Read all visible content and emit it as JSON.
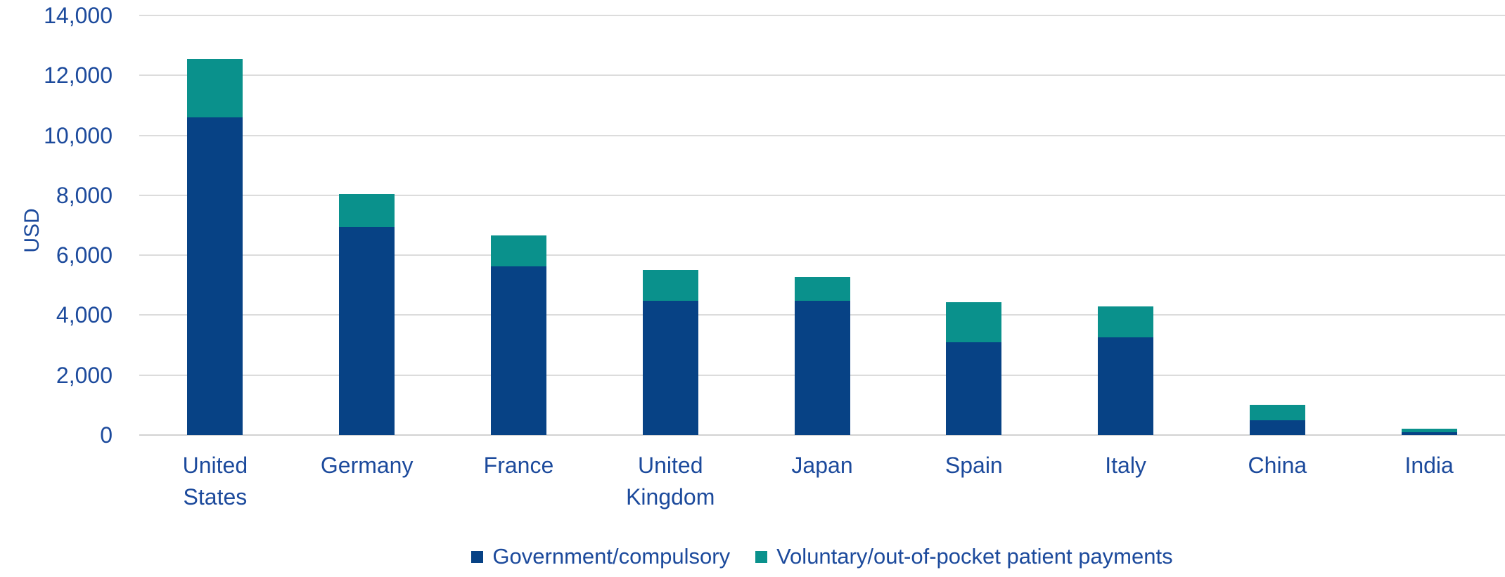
{
  "colors": {
    "government_series": "#074285",
    "voluntary_series": "#0a918c",
    "axis_text": "#1c4a9c",
    "gridline": "#dcdcdc",
    "background": "#ffffff"
  },
  "chart_data": {
    "type": "bar",
    "stacked": true,
    "title": "",
    "xlabel": "",
    "ylabel": "USD",
    "ylim": [
      0,
      14000
    ],
    "yticks": [
      0,
      2000,
      4000,
      6000,
      8000,
      10000,
      12000,
      14000
    ],
    "ytick_labels": [
      "0",
      "2,000",
      "4,000",
      "6,000",
      "8,000",
      "10,000",
      "12,000",
      "14,000"
    ],
    "grid": "horizontal",
    "legend_position": "bottom",
    "categories": [
      "United States",
      "Germany",
      "France",
      "United Kingdom",
      "Japan",
      "Spain",
      "Italy",
      "China",
      "India"
    ],
    "series": [
      {
        "name": "Government/compulsory",
        "color": "#074285",
        "values": [
          10600,
          6950,
          5620,
          4490,
          4490,
          3100,
          3270,
          500,
          100
        ]
      },
      {
        "name": "Voluntary/out-of-pocket patient payments",
        "color": "#0a918c",
        "values": [
          1950,
          1100,
          1030,
          1010,
          790,
          1330,
          1030,
          510,
          120
        ]
      }
    ],
    "totals": [
      12550,
      8050,
      6650,
      5500,
      5280,
      4430,
      4300,
      1010,
      220
    ]
  }
}
